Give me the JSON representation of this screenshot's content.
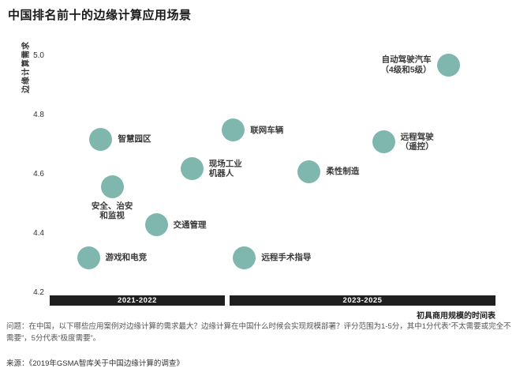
{
  "colors": {
    "point": "#7fb7ae",
    "bar": "#1f1f1f",
    "title": "#1a1a1a"
  },
  "chart_data": {
    "type": "scatter",
    "title": "中国排名前十的边缘计算应用场景",
    "ylabel": "边缘计算需求",
    "xlabel": "初具商用规模的时间表",
    "ylim": [
      4.2,
      5.0
    ],
    "yticks": [
      "5.0",
      "4.8",
      "4.6",
      "4.4",
      "4.2"
    ],
    "x_periods": [
      "2021-2022",
      "2023-2025"
    ],
    "x_axis_note": "x = relative position along commercialization timeline (0-1)",
    "points": [
      {
        "label": "智慧园区",
        "x": 0.115,
        "y": 4.72,
        "period": "2021-2022",
        "side": "right"
      },
      {
        "label": "安全、治安\n和监视",
        "x": 0.14,
        "y": 4.56,
        "period": "2021-2022",
        "side": "below"
      },
      {
        "label": "游戏和电竞",
        "x": 0.087,
        "y": 4.32,
        "period": "2021-2022",
        "side": "right"
      },
      {
        "label": "交通管理",
        "x": 0.239,
        "y": 4.43,
        "period": "2021-2022",
        "side": "right"
      },
      {
        "label": "现场工业\n机器人",
        "x": 0.319,
        "y": 4.62,
        "period": "2021-2022",
        "side": "right"
      },
      {
        "label": "联网车辆",
        "x": 0.412,
        "y": 4.75,
        "period": "2023-2025",
        "side": "right"
      },
      {
        "label": "远程手术指导",
        "x": 0.437,
        "y": 4.32,
        "period": "2023-2025",
        "side": "right"
      },
      {
        "label": "柔性制造",
        "x": 0.582,
        "y": 4.61,
        "period": "2023-2025",
        "side": "right"
      },
      {
        "label": "远程驾驶\n（遥控）",
        "x": 0.749,
        "y": 4.71,
        "period": "2023-2025",
        "side": "right"
      },
      {
        "label": "自动驾驶汽车\n（4级和5级）",
        "x": 0.894,
        "y": 4.97,
        "period": "2023-2025",
        "side": "left"
      }
    ]
  },
  "notes": {
    "question": "问题：在中国，以下哪些应用案例对边缘计算的需求最大？边缘计算在中国什么时候会实现规模部署？评分范围为1-5分，其中1分代表“不太需要或完全不需要”，5分代表“极度需要”。",
    "source": "来源：《2019年GSMA智库关于中国边缘计算的调查》"
  }
}
